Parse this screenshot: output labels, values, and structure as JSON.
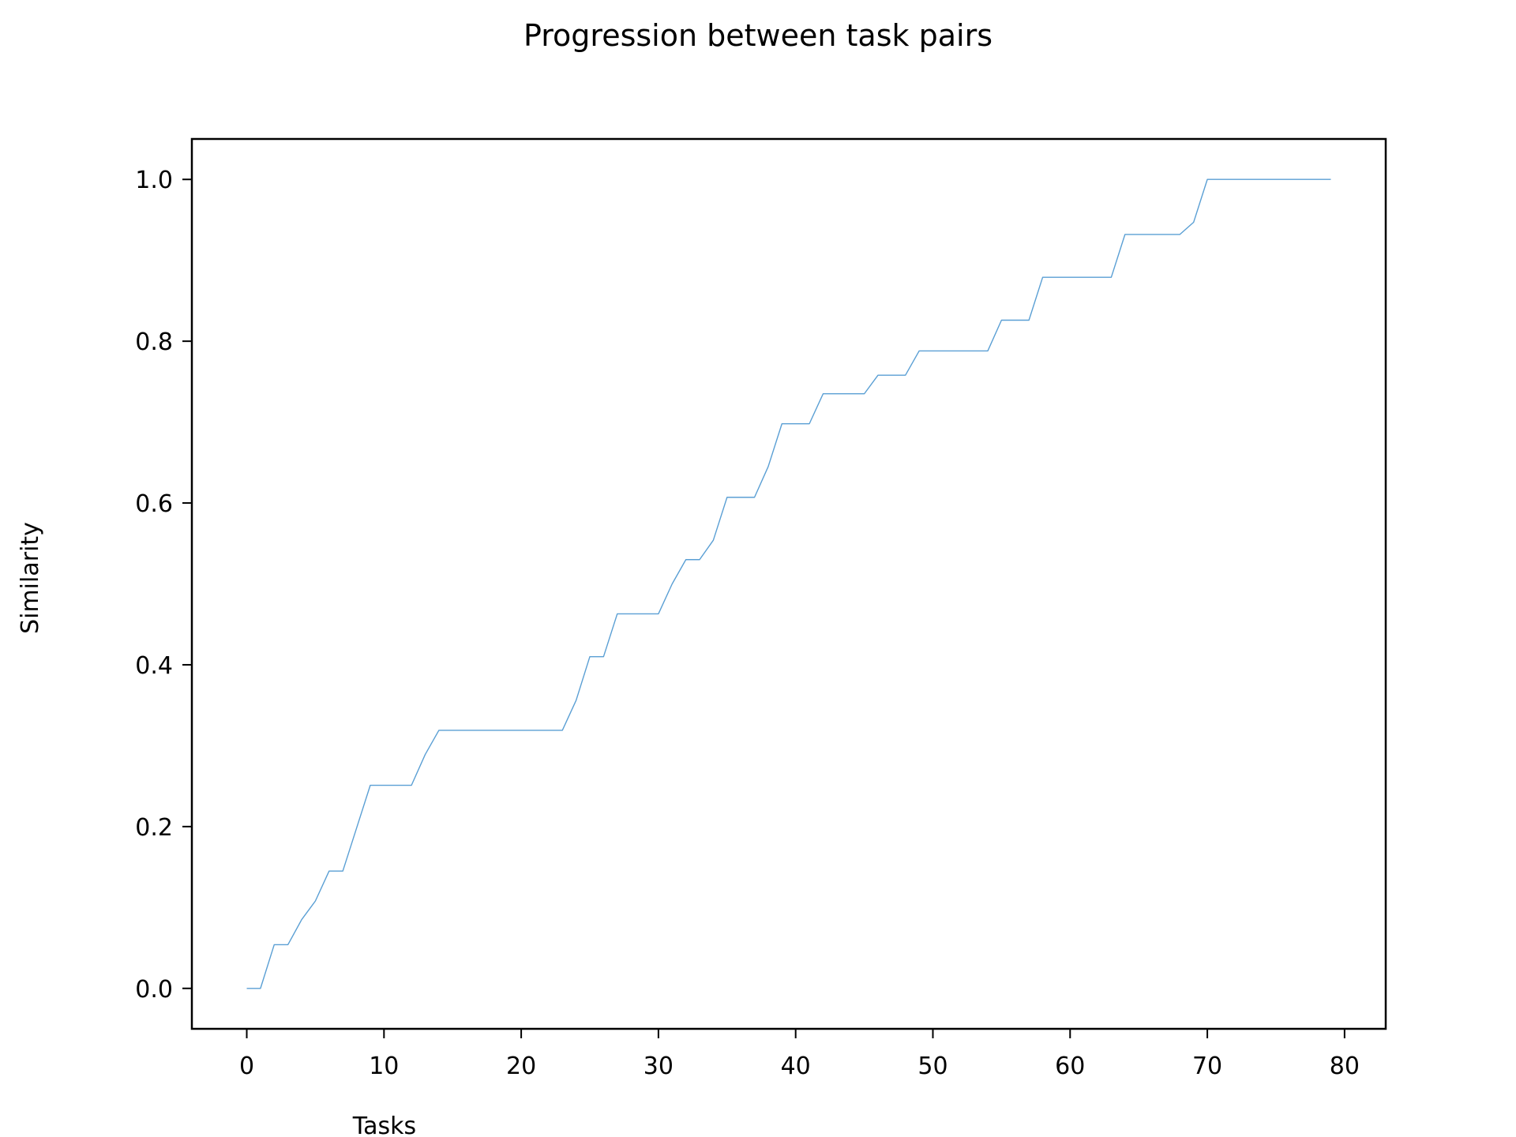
{
  "chart_data": {
    "type": "line",
    "title": "Progression between task pairs",
    "xlabel": "Tasks",
    "ylabel": "Similarity",
    "xlim": [
      -4,
      83
    ],
    "ylim": [
      -0.05,
      1.05
    ],
    "x_ticks": [
      0,
      10,
      20,
      30,
      40,
      50,
      60,
      70,
      80
    ],
    "x_tick_labels": [
      "0",
      "10",
      "20",
      "30",
      "40",
      "50",
      "60",
      "70",
      "80"
    ],
    "y_ticks": [
      0.0,
      0.2,
      0.4,
      0.6,
      0.8,
      1.0
    ],
    "y_tick_labels": [
      "0.0",
      "0.2",
      "0.4",
      "0.6",
      "0.8",
      "1.0"
    ],
    "grid": false,
    "legend": "none",
    "series": [
      {
        "color": "#5a9fd4",
        "x": [
          0,
          1,
          2,
          3,
          4,
          5,
          6,
          7,
          8,
          9,
          10,
          11,
          12,
          13,
          14,
          15,
          16,
          17,
          18,
          19,
          20,
          21,
          22,
          23,
          24,
          25,
          26,
          27,
          28,
          29,
          30,
          31,
          32,
          33,
          34,
          35,
          36,
          37,
          38,
          39,
          40,
          41,
          42,
          43,
          44,
          45,
          46,
          47,
          48,
          49,
          50,
          51,
          52,
          53,
          54,
          55,
          56,
          57,
          58,
          59,
          60,
          61,
          62,
          63,
          64,
          65,
          66,
          67,
          68,
          69,
          70,
          71,
          72,
          73,
          74,
          75,
          76,
          77,
          78,
          79
        ],
        "values": [
          0.0,
          0.0,
          0.054,
          0.054,
          0.085,
          0.108,
          0.145,
          0.145,
          0.198,
          0.251,
          0.251,
          0.251,
          0.251,
          0.289,
          0.319,
          0.319,
          0.319,
          0.319,
          0.319,
          0.319,
          0.319,
          0.319,
          0.319,
          0.319,
          0.356,
          0.41,
          0.41,
          0.463,
          0.463,
          0.463,
          0.463,
          0.5,
          0.53,
          0.53,
          0.554,
          0.607,
          0.607,
          0.607,
          0.645,
          0.698,
          0.698,
          0.698,
          0.735,
          0.735,
          0.735,
          0.735,
          0.758,
          0.758,
          0.758,
          0.788,
          0.788,
          0.788,
          0.788,
          0.788,
          0.788,
          0.826,
          0.826,
          0.826,
          0.879,
          0.879,
          0.879,
          0.879,
          0.879,
          0.879,
          0.932,
          0.932,
          0.932,
          0.932,
          0.932,
          0.947,
          1.0,
          1.0,
          1.0,
          1.0,
          1.0,
          1.0,
          1.0,
          1.0,
          1.0,
          1.0
        ]
      }
    ]
  }
}
